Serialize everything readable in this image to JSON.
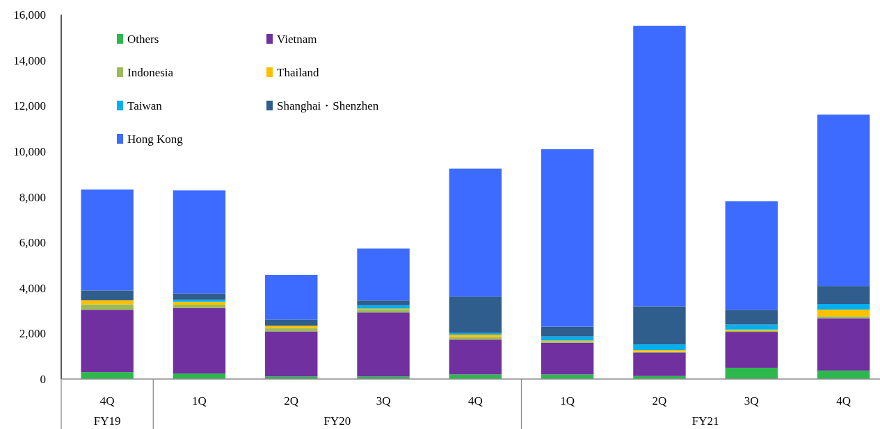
{
  "chart_data": {
    "type": "bar",
    "stacked": true,
    "legend": "top left",
    "grid": false,
    "categories": [
      "4Q",
      "1Q",
      "2Q",
      "3Q",
      "4Q",
      "1Q",
      "2Q",
      "3Q",
      "4Q"
    ],
    "annotations": [
      "FY19",
      "FY20",
      "FY21"
    ],
    "ylim": [
      0,
      16000
    ],
    "yticks": [
      {
        "value": 0,
        "label": "0"
      },
      {
        "value": 2000,
        "label": "2,000"
      },
      {
        "value": 4000,
        "label": "4,000"
      },
      {
        "value": 6000,
        "label": "6,000"
      },
      {
        "value": 8000,
        "label": "8,000"
      },
      {
        "value": 10000,
        "label": "10,000"
      },
      {
        "value": 12000,
        "label": "12,000"
      },
      {
        "value": 14000,
        "label": "14,000"
      },
      {
        "value": 16000,
        "label": "16,000"
      }
    ],
    "series": [
      {
        "name": "Others",
        "color": "#2db84d",
        "values": [
          300,
          240,
          110,
          110,
          200,
          200,
          130,
          490,
          370
        ]
      },
      {
        "name": "Vietnam",
        "color": "#7030a0",
        "values": [
          2740,
          2880,
          1980,
          2810,
          1530,
          1390,
          1030,
          1580,
          2300
        ]
      },
      {
        "name": "Indonesia",
        "color": "#9bbb59",
        "values": [
          240,
          140,
          150,
          130,
          110,
          50,
          40,
          40,
          90
        ]
      },
      {
        "name": "Thailand",
        "color": "#ffc000",
        "values": [
          180,
          130,
          100,
          40,
          110,
          50,
          80,
          60,
          290
        ]
      },
      {
        "name": "Taiwan",
        "color": "#00b0f0",
        "values": [
          0,
          90,
          0,
          150,
          70,
          180,
          240,
          220,
          240
        ]
      },
      {
        "name": "Shanghai・Shenzhen",
        "color": "#2f5d8c",
        "values": [
          430,
          280,
          270,
          220,
          1600,
          430,
          1670,
          650,
          790
        ]
      },
      {
        "name": "Hong Kong",
        "color": "#3d6bff",
        "values": [
          4430,
          4520,
          1960,
          2270,
          5620,
          7790,
          12320,
          4760,
          7530
        ]
      }
    ]
  }
}
